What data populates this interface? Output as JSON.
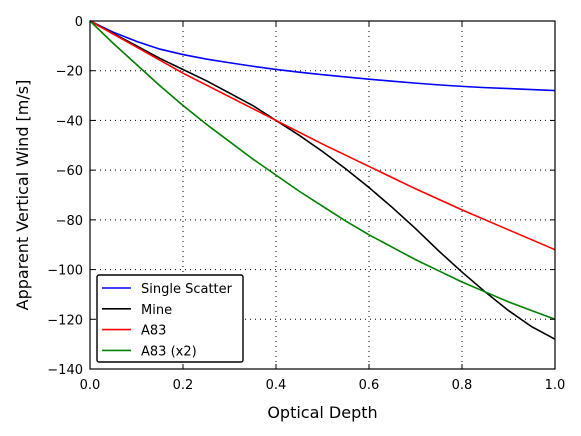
{
  "chart_data": {
    "type": "line",
    "xlabel": "Optical Depth",
    "ylabel": "Apparent Vertical Wind [m/s]",
    "xlim": [
      0.0,
      1.0
    ],
    "ylim": [
      -140,
      0
    ],
    "xticks": [
      0.0,
      0.2,
      0.4,
      0.6,
      0.8,
      1.0
    ],
    "xtick_labels": [
      "0.0",
      "0.2",
      "0.4",
      "0.6",
      "0.8",
      "1.0"
    ],
    "yticks": [
      0,
      -20,
      -40,
      -60,
      -80,
      -100,
      -120,
      -140
    ],
    "ytick_labels": [
      "0",
      "−20",
      "−40",
      "−60",
      "−80",
      "−100",
      "−120",
      "−140"
    ],
    "grid": true,
    "legend_position": "lower-left",
    "series": [
      {
        "name": "Single Scatter",
        "color": "#0000ff",
        "x": [
          0.0,
          0.05,
          0.1,
          0.15,
          0.2,
          0.25,
          0.3,
          0.35,
          0.4,
          0.45,
          0.5,
          0.55,
          0.6,
          0.65,
          0.7,
          0.75,
          0.8,
          0.85,
          0.9,
          0.95,
          1.0
        ],
        "y": [
          0,
          -4.5,
          -8.2,
          -11.3,
          -13.5,
          -15.3,
          -16.8,
          -18.2,
          -19.5,
          -20.6,
          -21.6,
          -22.5,
          -23.4,
          -24.2,
          -25.0,
          -25.7,
          -26.3,
          -26.8,
          -27.2,
          -27.6,
          -28.0
        ]
      },
      {
        "name": "Mine",
        "color": "#000000",
        "x": [
          0.0,
          0.05,
          0.1,
          0.15,
          0.2,
          0.25,
          0.3,
          0.35,
          0.4,
          0.45,
          0.5,
          0.55,
          0.6,
          0.65,
          0.7,
          0.75,
          0.8,
          0.85,
          0.9,
          0.95,
          1.0
        ],
        "y": [
          0,
          -5.0,
          -10.0,
          -15.0,
          -19.5,
          -24.0,
          -29.0,
          -34.0,
          -40.0,
          -46.0,
          -52.5,
          -59.5,
          -67.0,
          -75.0,
          -83.5,
          -92.5,
          -101.0,
          -109.0,
          -116.5,
          -123.0,
          -128.0
        ]
      },
      {
        "name": "A83",
        "color": "#ff0000",
        "x": [
          0.0,
          0.1,
          0.2,
          0.3,
          0.4,
          0.5,
          0.6,
          0.7,
          0.8,
          0.9,
          1.0
        ],
        "y": [
          0,
          -10.5,
          -21.0,
          -30.5,
          -40.0,
          -49.5,
          -58.5,
          -67.5,
          -76.0,
          -84.0,
          -92.0
        ]
      },
      {
        "name": "A83 (x2)",
        "color": "#008000",
        "x": [
          0.0,
          0.05,
          0.1,
          0.15,
          0.2,
          0.25,
          0.3,
          0.35,
          0.4,
          0.45,
          0.5,
          0.55,
          0.6,
          0.65,
          0.7,
          0.75,
          0.8,
          0.85,
          0.9,
          0.95,
          1.0
        ],
        "y": [
          0,
          -9.0,
          -17.5,
          -26.0,
          -34.0,
          -41.5,
          -48.5,
          -55.5,
          -62.0,
          -68.5,
          -74.5,
          -80.5,
          -86.0,
          -91.0,
          -96.0,
          -100.5,
          -105.0,
          -109.0,
          -113.0,
          -116.5,
          -120.0
        ]
      }
    ]
  }
}
